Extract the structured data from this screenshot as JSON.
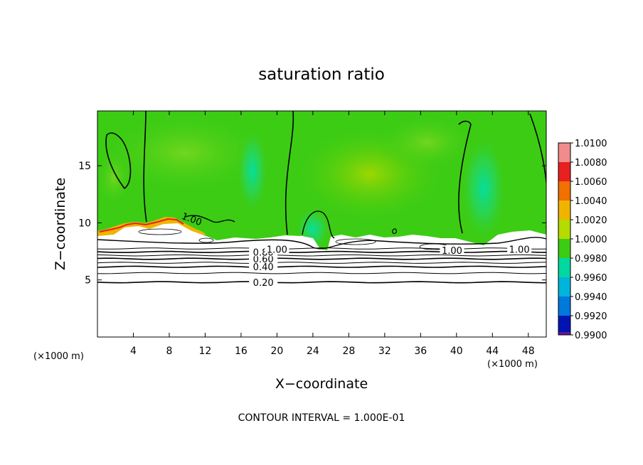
{
  "chart_data": {
    "type": "heatmap",
    "title": "saturation ratio",
    "xlabel": "X−coordinate",
    "ylabel": "Z−coordinate",
    "x_unit": "(×1000 m)",
    "x_unit_right": "(×1000 m)",
    "xlim": [
      0,
      50
    ],
    "ylim": [
      0,
      19.8
    ],
    "x_ticks": [
      4,
      8,
      12,
      16,
      20,
      24,
      28,
      32,
      36,
      40,
      44,
      48
    ],
    "y_ticks": [
      5,
      10,
      15
    ],
    "contour_interval_text": "CONTOUR INTERVAL = 1.000E-01",
    "colorbar": {
      "levels": [
        "1.0100",
        "1.0080",
        "1.0060",
        "1.0040",
        "1.0020",
        "1.0000",
        "0.9980",
        "0.9960",
        "0.9940",
        "0.9920",
        "0.9900"
      ],
      "colors": [
        "#f08c8c",
        "#e82020",
        "#f07000",
        "#f0b400",
        "#b4dc00",
        "#3ccc14",
        "#00d8a0",
        "#00b4dc",
        "#0078dc",
        "#0014b4",
        "#6414a0"
      ]
    },
    "field": {
      "background_value": 1.0,
      "background_color": "#3ccc14",
      "cloud_base_height": 8.5,
      "dry_layer_color": "#ffffff"
    },
    "contours": [
      {
        "level": 0.2,
        "label": "0.20",
        "z": 4.8
      },
      {
        "level": 0.3,
        "label": "",
        "z": 5.6
      },
      {
        "level": 0.4,
        "label": "0.40",
        "z": 6.15
      },
      {
        "level": 0.5,
        "label": "",
        "z": 6.5
      },
      {
        "level": 0.6,
        "label": "0.60",
        "z": 6.85
      },
      {
        "level": 0.7,
        "label": "",
        "z": 7.15
      },
      {
        "level": 0.8,
        "label": "0.80",
        "z": 7.45
      },
      {
        "level": 0.9,
        "label": "",
        "z": 7.75
      },
      {
        "level": 1.0,
        "label": "1.00",
        "z": 10.3
      }
    ],
    "contour_extra_labels": [
      {
        "label": "1.00",
        "x": 39.5,
        "z": 7.6
      },
      {
        "label": "1.00",
        "x": 47.0,
        "z": 7.7
      },
      {
        "label": "1.00",
        "x": 20.0,
        "z": 7.7
      }
    ]
  }
}
